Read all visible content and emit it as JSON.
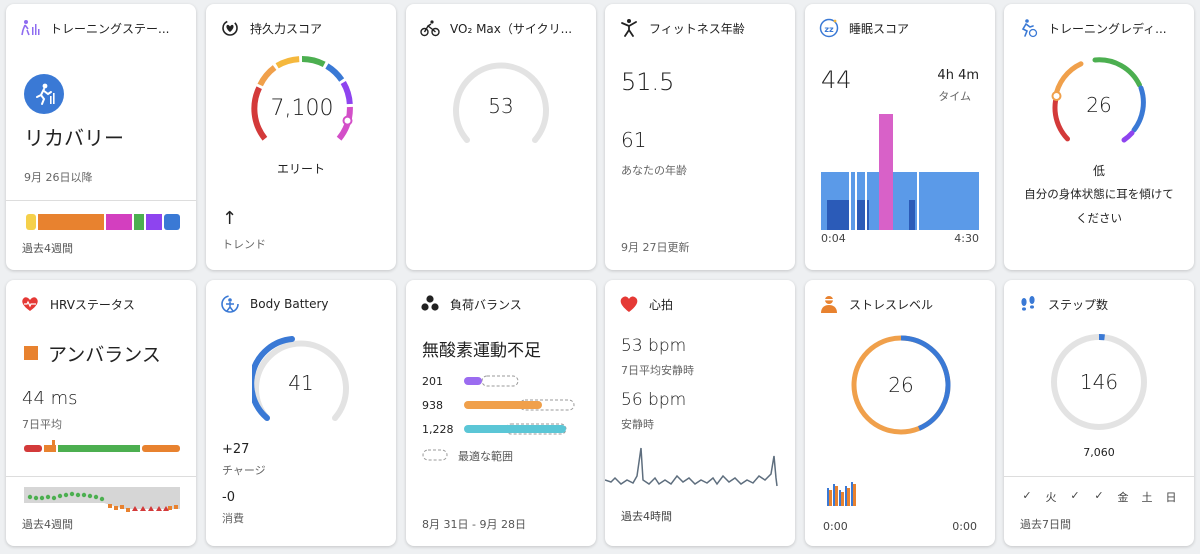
{
  "training_status": {
    "title": "トレーニングステー...",
    "status": "リカバリー",
    "since": "9月 26日以降",
    "period": "過去4週間",
    "bar_colors": [
      "#f5d04a",
      "#e8822f",
      "#d33fbf",
      "#4caf50",
      "#8e44ef",
      "#3a79d5"
    ]
  },
  "endurance": {
    "title": "持久力スコア",
    "value": "7,100",
    "level": "エリート",
    "trend_arrow": "↑",
    "trend_label": "トレンド"
  },
  "vo2max": {
    "title": "VO₂ Max（サイクリ...",
    "value": "53"
  },
  "fitness_age": {
    "title": "フィットネス年齢",
    "value": "51.5",
    "actual_age": "61",
    "actual_label": "あなたの年齢",
    "updated": "9月 27日更新"
  },
  "sleep": {
    "title": "睡眠スコア",
    "score": "44",
    "duration": "4h 4m",
    "duration_label": "タイム",
    "start": "0:04",
    "end": "4:30"
  },
  "readiness": {
    "title": "トレーニングレディ...",
    "value": "26",
    "level": "低",
    "message": "自分の身体状態に耳を傾けてください"
  },
  "hrv": {
    "title": "HRVステータス",
    "status": "アンバランス",
    "value": "44 ms",
    "avg_label": "7日平均",
    "period": "過去4週間"
  },
  "body_battery": {
    "title": "Body Battery",
    "value": "41",
    "charge": "+27",
    "charge_label": "チャージ",
    "drain": "-0",
    "drain_label": "消費"
  },
  "load": {
    "title": "負荷バランス",
    "status": "無酸素運動不足",
    "rows": [
      {
        "value": "201",
        "color": "#9b6cf0"
      },
      {
        "value": "938",
        "color": "#f0a04b"
      },
      {
        "value": "1,228",
        "color": "#5bc6d6"
      }
    ],
    "optimal_label": "最適な範囲",
    "period": "8月 31日 - 9月 28日"
  },
  "heart": {
    "title": "心拍",
    "avg": "53 bpm",
    "avg_label": "7日平均安静時",
    "resting": "56 bpm",
    "resting_label": "安静時",
    "period": "過去4時間"
  },
  "stress": {
    "title": "ストレスレベル",
    "value": "26",
    "start": "0:00",
    "end": "0:00"
  },
  "steps": {
    "title": "ステップ数",
    "value": "146",
    "goal": "7,060",
    "days": [
      "✓",
      "火",
      "✓",
      "✓",
      "金",
      "土",
      "日"
    ],
    "period": "過去7日間"
  }
}
